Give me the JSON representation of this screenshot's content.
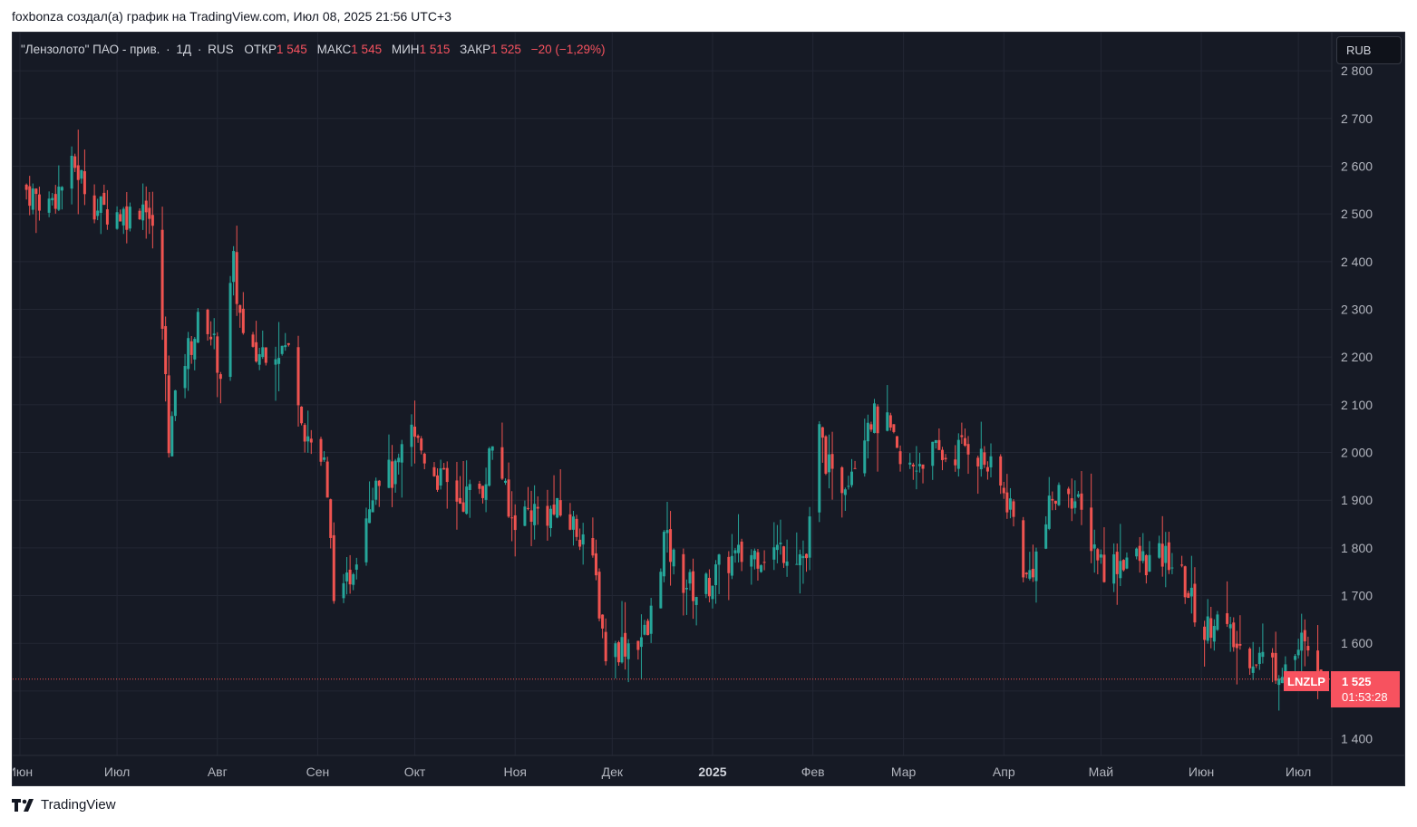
{
  "caption": "foxbonza создал(а) график на TradingView.com, Июл 08, 2025 21:56 UTC+3",
  "legend": {
    "name": "\"Лензолото\" ПАО - прив.",
    "interval": "1Д",
    "exchange": "RUS",
    "open_label": "ОТКР",
    "open": "1 545",
    "high_label": "МАКС",
    "high": "1 545",
    "low_label": "МИН",
    "low": "1 515",
    "close_label": "ЗАКР",
    "close": "1 525",
    "change": "−20 (−1,29%)"
  },
  "currency": "RUB",
  "ticker": "LNZLP",
  "last_price": "1 525",
  "countdown": "01:53:28",
  "brand": "TradingView",
  "colors": {
    "up": "#26a69a",
    "down": "#ef5350",
    "background": "#161a25",
    "grid": "#232734",
    "axis_text": "#b2b5be"
  },
  "chart_data": {
    "type": "candlestick",
    "series_name": "LNZLP",
    "y_axis_ticks": [
      2800,
      2700,
      2600,
      2500,
      2400,
      2300,
      2200,
      2100,
      2000,
      1900,
      1800,
      1700,
      1600,
      1400
    ],
    "y_axis_tick_labels": [
      "2 800",
      "2 700",
      "2 600",
      "2 500",
      "2 400",
      "2 300",
      "2 200",
      "2 100",
      "2 000",
      "1 900",
      "1 800",
      "1 700",
      "1 600",
      "1 400"
    ],
    "ylim": [
      1365,
      2880
    ],
    "x_axis_labels": [
      {
        "label": "Июн",
        "date": "2024-06-01"
      },
      {
        "label": "Июл",
        "date": "2024-07-01"
      },
      {
        "label": "Авг",
        "date": "2024-08-01"
      },
      {
        "label": "Сен",
        "date": "2024-09-01"
      },
      {
        "label": "Окт",
        "date": "2024-10-01"
      },
      {
        "label": "Ноя",
        "date": "2024-11-01"
      },
      {
        "label": "Дек",
        "date": "2024-12-01"
      },
      {
        "label": "2025",
        "date": "2025-01-01",
        "bold": true
      },
      {
        "label": "Фев",
        "date": "2025-02-01"
      },
      {
        "label": "Мар",
        "date": "2025-03-01"
      },
      {
        "label": "Апр",
        "date": "2025-04-01"
      },
      {
        "label": "Май",
        "date": "2025-05-01"
      },
      {
        "label": "Июн",
        "date": "2025-06-01"
      },
      {
        "label": "Июл",
        "date": "2025-07-01"
      }
    ],
    "date_range": [
      "2024-06-01",
      "2025-07-08"
    ],
    "last_close": 1525,
    "anchors": [
      {
        "date": "2024-06-01",
        "close": 2560
      },
      {
        "date": "2024-06-10",
        "close": 2520
      },
      {
        "date": "2024-06-18",
        "close": 2600
      },
      {
        "date": "2024-06-25",
        "close": 2510
      },
      {
        "date": "2024-07-05",
        "close": 2500
      },
      {
        "date": "2024-07-10",
        "close": 2530
      },
      {
        "date": "2024-07-14",
        "close": 2380
      },
      {
        "date": "2024-07-17",
        "close": 2030
      },
      {
        "date": "2024-07-22",
        "close": 2200
      },
      {
        "date": "2024-07-28",
        "close": 2300
      },
      {
        "date": "2024-08-02",
        "close": 2170
      },
      {
        "date": "2024-08-06",
        "close": 2390
      },
      {
        "date": "2024-08-10",
        "close": 2180
      },
      {
        "date": "2024-08-17",
        "close": 2230
      },
      {
        "date": "2024-08-24",
        "close": 2210
      },
      {
        "date": "2024-08-28",
        "close": 2050
      },
      {
        "date": "2024-09-03",
        "close": 1970
      },
      {
        "date": "2024-09-07",
        "close": 1640
      },
      {
        "date": "2024-09-13",
        "close": 1800
      },
      {
        "date": "2024-09-19",
        "close": 1960
      },
      {
        "date": "2024-09-25",
        "close": 1950
      },
      {
        "date": "2024-09-30",
        "close": 2040
      },
      {
        "date": "2024-10-08",
        "close": 1950
      },
      {
        "date": "2024-10-15",
        "close": 1900
      },
      {
        "date": "2024-10-22",
        "close": 1930
      },
      {
        "date": "2024-10-26",
        "close": 2050
      },
      {
        "date": "2024-10-30",
        "close": 1860
      },
      {
        "date": "2024-11-06",
        "close": 1880
      },
      {
        "date": "2024-11-15",
        "close": 1870
      },
      {
        "date": "2024-11-22",
        "close": 1830
      },
      {
        "date": "2024-11-26",
        "close": 1730
      },
      {
        "date": "2024-11-29",
        "close": 1580
      },
      {
        "date": "2024-12-05",
        "close": 1600
      },
      {
        "date": "2024-12-12",
        "close": 1620
      },
      {
        "date": "2024-12-17",
        "close": 1820
      },
      {
        "date": "2024-12-22",
        "close": 1740
      },
      {
        "date": "2024-12-28",
        "close": 1700
      },
      {
        "date": "2025-01-05",
        "close": 1770
      },
      {
        "date": "2025-01-15",
        "close": 1790
      },
      {
        "date": "2025-01-25",
        "close": 1800
      },
      {
        "date": "2025-01-30",
        "close": 1780
      },
      {
        "date": "2025-02-03",
        "close": 2040
      },
      {
        "date": "2025-02-08",
        "close": 1910
      },
      {
        "date": "2025-02-14",
        "close": 1990
      },
      {
        "date": "2025-02-18",
        "close": 2080
      },
      {
        "date": "2025-02-24",
        "close": 2050
      },
      {
        "date": "2025-03-01",
        "close": 1950
      },
      {
        "date": "2025-03-08",
        "close": 2000
      },
      {
        "date": "2025-03-15",
        "close": 1990
      },
      {
        "date": "2025-03-21",
        "close": 2020
      },
      {
        "date": "2025-03-26",
        "close": 1980
      },
      {
        "date": "2025-04-03",
        "close": 1890
      },
      {
        "date": "2025-04-08",
        "close": 1730
      },
      {
        "date": "2025-04-12",
        "close": 1800
      },
      {
        "date": "2025-04-16",
        "close": 1900
      },
      {
        "date": "2025-04-21",
        "close": 1930
      },
      {
        "date": "2025-04-26",
        "close": 1850
      },
      {
        "date": "2025-05-02",
        "close": 1760
      },
      {
        "date": "2025-05-09",
        "close": 1780
      },
      {
        "date": "2025-05-16",
        "close": 1770
      },
      {
        "date": "2025-05-22",
        "close": 1780
      },
      {
        "date": "2025-05-27",
        "close": 1720
      },
      {
        "date": "2025-06-02",
        "close": 1620
      },
      {
        "date": "2025-06-05",
        "close": 1660
      },
      {
        "date": "2025-06-12",
        "close": 1590
      },
      {
        "date": "2025-06-20",
        "close": 1570
      },
      {
        "date": "2025-06-24",
        "close": 1550
      },
      {
        "date": "2025-06-29",
        "close": 1560
      },
      {
        "date": "2025-07-02",
        "close": 1600
      },
      {
        "date": "2025-07-05",
        "close": 1550
      },
      {
        "date": "2025-07-08",
        "close": 1525
      }
    ],
    "min": 1488,
    "max": 2760,
    "xlabel": "",
    "ylabel": ""
  }
}
